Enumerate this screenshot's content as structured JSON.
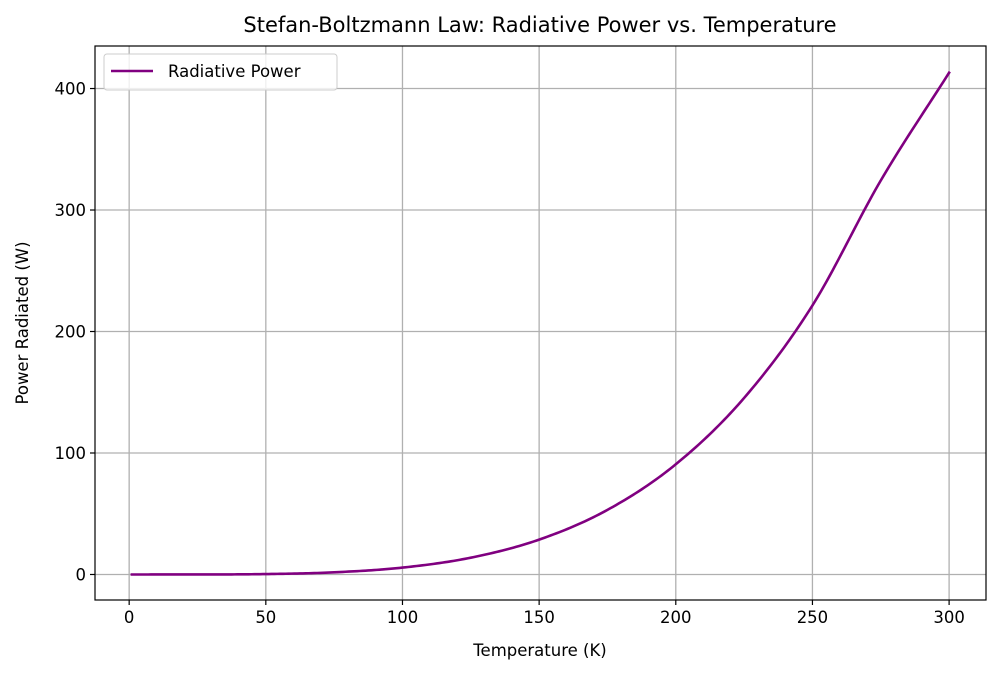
{
  "chart_data": {
    "type": "line",
    "title": "Stefan-Boltzmann Law: Radiative Power vs. Temperature",
    "xlabel": "Temperature (K)",
    "ylabel": "Power Radiated (W)",
    "xlim": [
      -12.5,
      313.5
    ],
    "ylim": [
      -21,
      435
    ],
    "x_ticks": [
      0,
      50,
      100,
      150,
      200,
      250,
      300
    ],
    "y_ticks": [
      0,
      100,
      200,
      300,
      400
    ],
    "grid": true,
    "legend_position": "top-left",
    "series": [
      {
        "name": "Radiative Power",
        "color": "#800080",
        "x": [
          1,
          25,
          50,
          75,
          100,
          125,
          150,
          175,
          200,
          225,
          250,
          275,
          300
        ],
        "y": [
          0.0,
          0.02,
          0.35,
          1.79,
          5.67,
          13.84,
          28.7,
          53.18,
          90.72,
          145.32,
          221.48,
          324.29,
          413.0
        ]
      }
    ]
  }
}
